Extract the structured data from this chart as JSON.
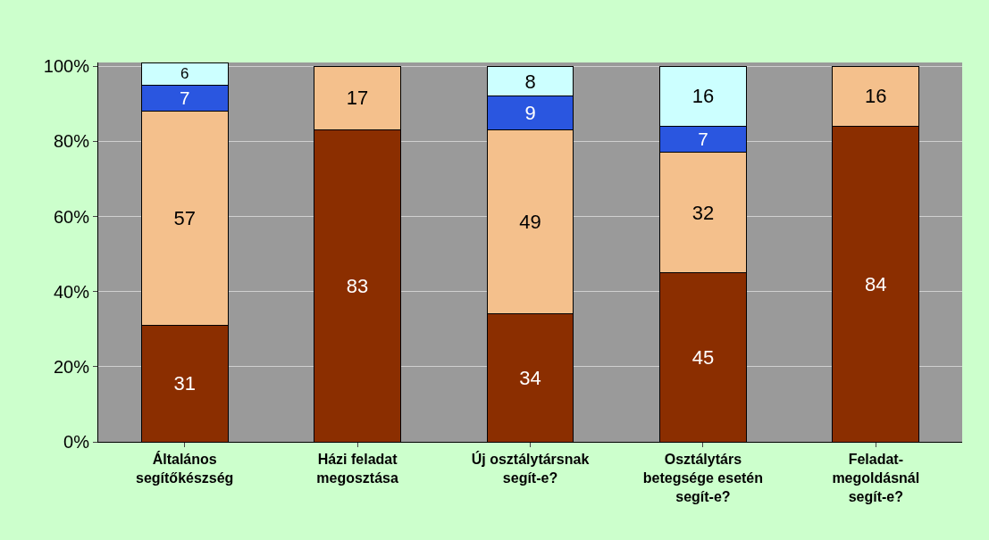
{
  "chart_data": {
    "type": "bar",
    "stacked": true,
    "data_labels": true,
    "grid": "y",
    "categories": [
      "Általános\nsegítőkészség",
      "Házi feladat\nmegosztása",
      "Új osztálytársnak\nsegít-e?",
      "Osztálytárs\nbetegsége esetén\nsegít-e?",
      "Feladat-\nmegoldásnál\nsegít-e?"
    ],
    "series": [
      {
        "color": "#8b2e00",
        "values": [
          31,
          83,
          34,
          45,
          84
        ]
      },
      {
        "color": "#f4c08c",
        "values": [
          57,
          17,
          49,
          32,
          16
        ]
      },
      {
        "color": "#2a56e0",
        "values": [
          7,
          null,
          9,
          7,
          null
        ]
      },
      {
        "color": "#ccffff",
        "values": [
          6,
          null,
          8,
          16,
          null
        ]
      }
    ],
    "ylim": [
      0,
      101
    ],
    "yticks": [
      {
        "value": 0,
        "label": "0%"
      },
      {
        "value": 20,
        "label": "20%"
      },
      {
        "value": 40,
        "label": "40%"
      },
      {
        "value": 60,
        "label": "60%"
      },
      {
        "value": 80,
        "label": "80%"
      },
      {
        "value": 100,
        "label": "100%"
      }
    ]
  }
}
